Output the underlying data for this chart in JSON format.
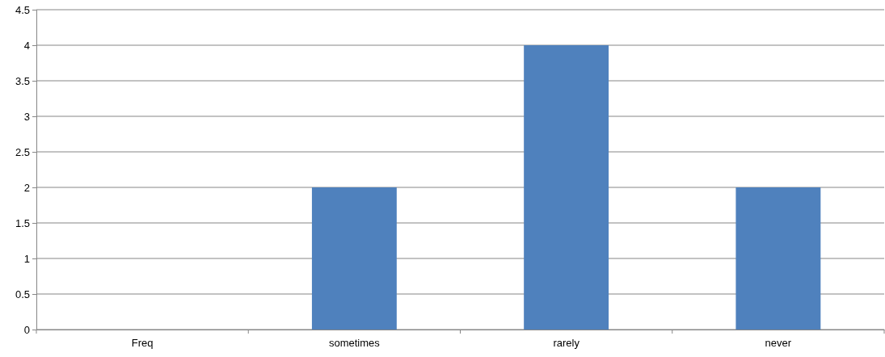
{
  "chart_data": {
    "type": "bar",
    "categories": [
      "Freq",
      "sometimes",
      "rarely",
      "never"
    ],
    "values": [
      0,
      2,
      4,
      2
    ],
    "color": "#4f81bd",
    "ylim": [
      0,
      4.5
    ],
    "yticks": [
      0,
      0.5,
      1,
      1.5,
      2,
      2.5,
      3,
      3.5,
      4,
      4.5
    ],
    "grid": "y"
  }
}
